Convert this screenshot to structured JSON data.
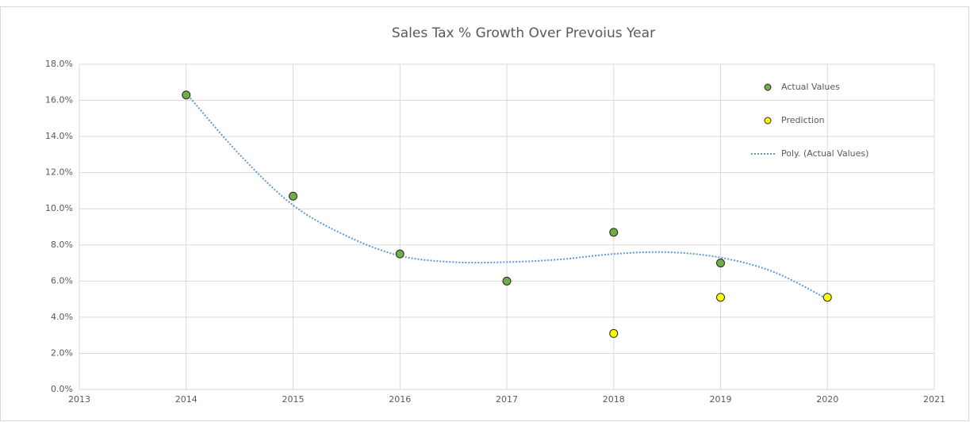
{
  "chart_data": {
    "type": "scatter",
    "title": "Sales Tax % Growth Over Prevoius Year",
    "series": [
      {
        "name": "Actual Values",
        "color": "#70ad47",
        "x": [
          2014,
          2015,
          2016,
          2017,
          2018,
          2019
        ],
        "values": [
          16.3,
          10.7,
          7.5,
          6.0,
          8.7,
          7.0
        ]
      },
      {
        "name": "Prediction",
        "color": "#ffff00",
        "x": [
          2018,
          2019,
          2020
        ],
        "values": [
          3.1,
          5.1,
          5.1
        ]
      }
    ],
    "trendline": {
      "name": "Poly. (Actual Values)",
      "color": "#5b9bd5",
      "x": [
        2014,
        2014.5,
        2015,
        2015.5,
        2016,
        2016.5,
        2017,
        2017.5,
        2018,
        2018.5,
        2019,
        2019.5,
        2020
      ],
      "values": [
        16.4,
        13.0,
        10.2,
        8.5,
        7.4,
        7.05,
        7.05,
        7.2,
        7.5,
        7.6,
        7.3,
        6.5,
        5.0
      ]
    },
    "xlim": [
      2013,
      2021
    ],
    "xticks": [
      2013,
      2014,
      2015,
      2016,
      2017,
      2018,
      2019,
      2020,
      2021
    ],
    "ylim": [
      0,
      18
    ],
    "yticks": [
      {
        "value": 0,
        "label": "0.0%"
      },
      {
        "value": 2,
        "label": "2.0%"
      },
      {
        "value": 4,
        "label": "4.0%"
      },
      {
        "value": 6,
        "label": "6.0%"
      },
      {
        "value": 8,
        "label": "8.0%"
      },
      {
        "value": 10,
        "label": "10.0%"
      },
      {
        "value": 12,
        "label": "12.0%"
      },
      {
        "value": 14,
        "label": "14.0%"
      },
      {
        "value": 16,
        "label": "16.0%"
      },
      {
        "value": 18,
        "label": "18.0%"
      }
    ],
    "grid": true,
    "legend": "right"
  }
}
